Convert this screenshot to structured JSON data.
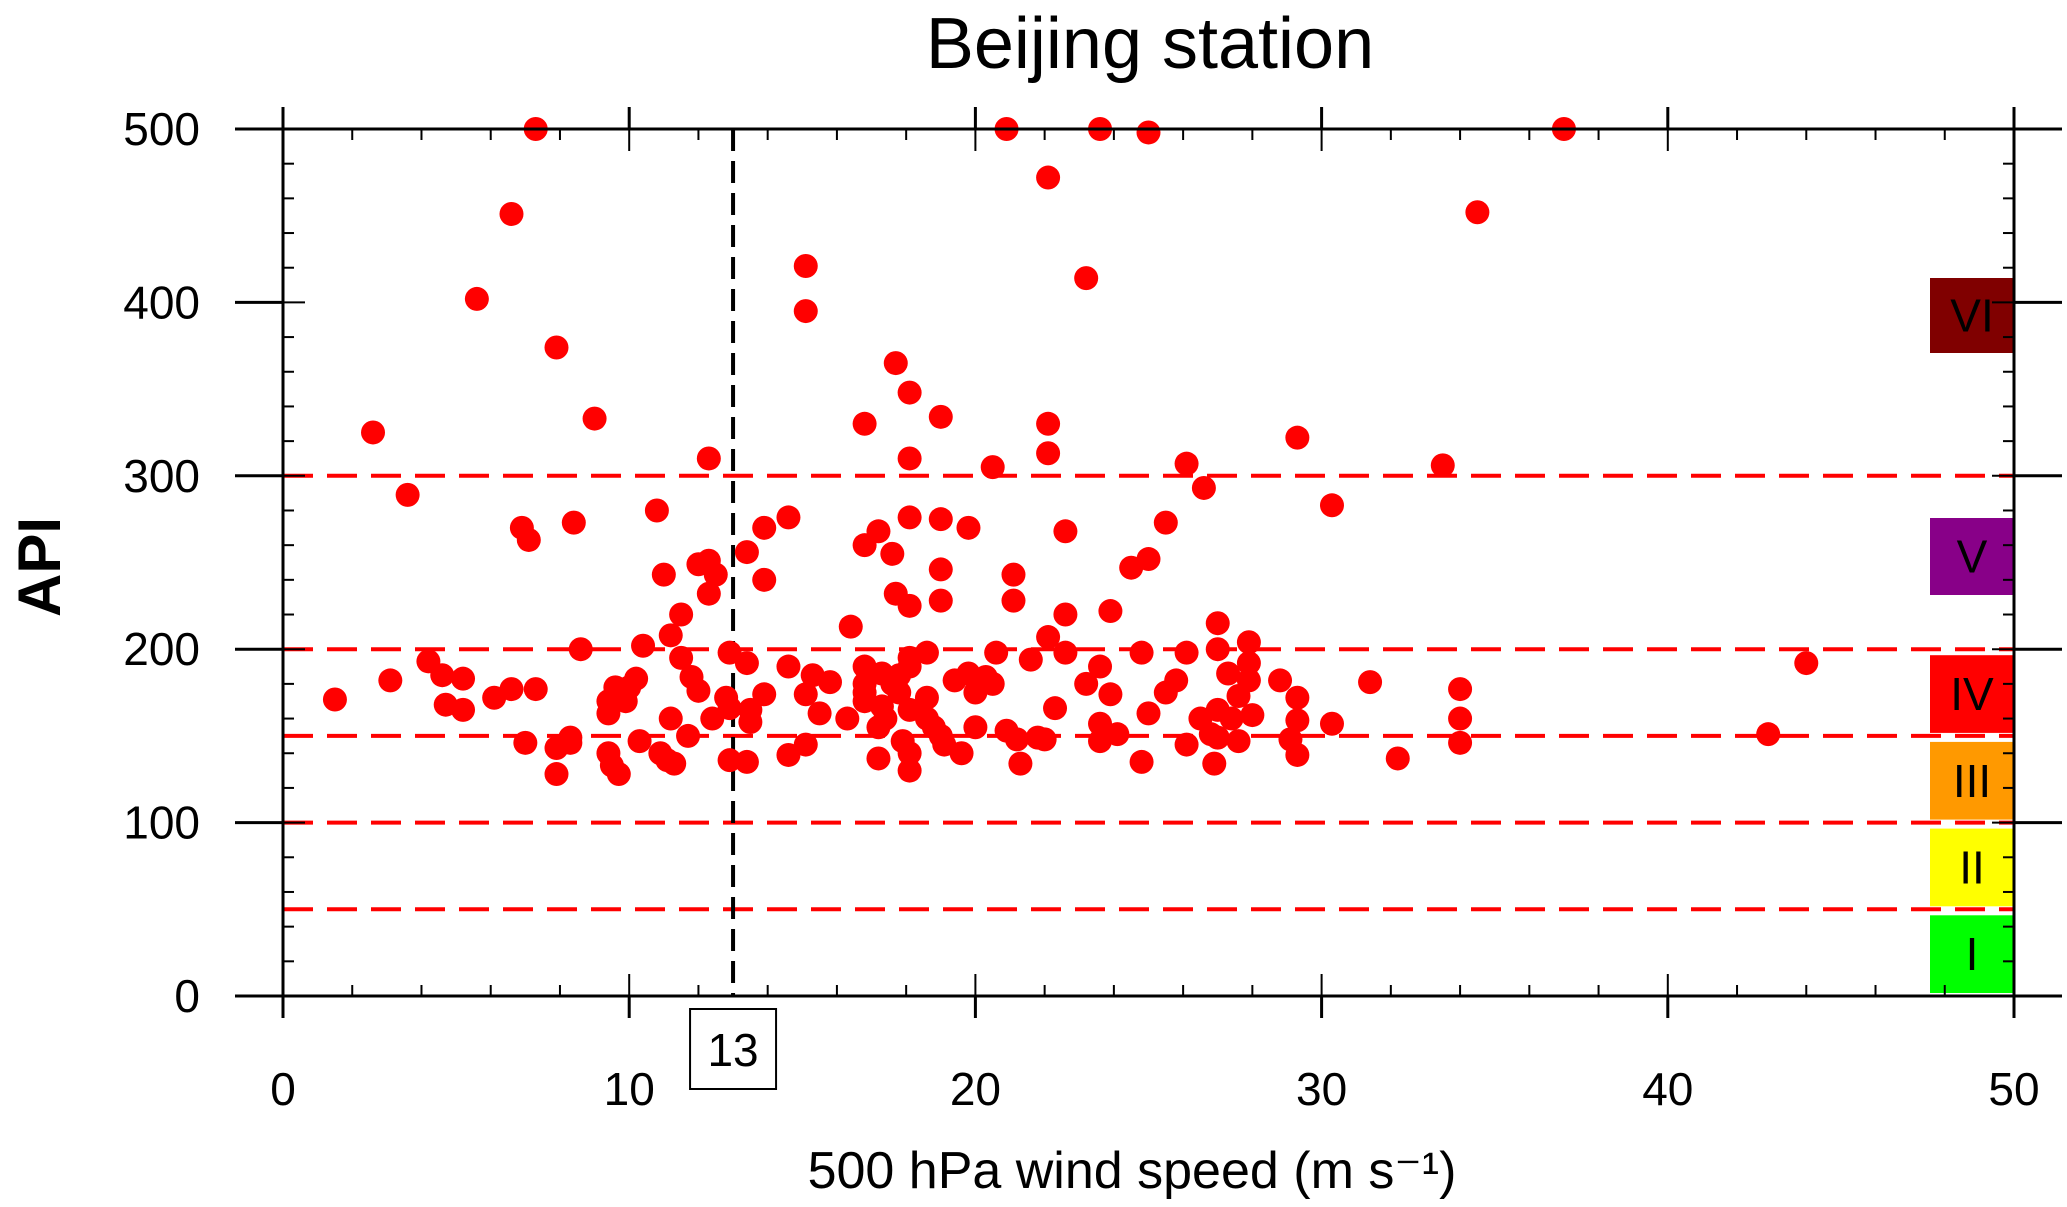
{
  "chart_data": {
    "type": "scatter",
    "title": "Beijing station",
    "xlabel": "500 hPa wind speed (m s⁻¹)",
    "ylabel": "API",
    "xlim": [
      0,
      50
    ],
    "ylim": [
      0,
      500
    ],
    "xticks": [
      "0",
      "10",
      "20",
      "30",
      "40",
      "50"
    ],
    "yticks": [
      "0",
      "100",
      "200",
      "300",
      "400",
      "500"
    ],
    "grid": false,
    "point_color": "#ff0000",
    "threshold_color": "#ff0000",
    "thresholds": [
      50,
      100,
      150,
      200,
      300
    ],
    "reference_line": {
      "x": 13,
      "label": "13",
      "color": "#000000"
    },
    "categories": [
      {
        "label": "I",
        "color": "#00ff00",
        "range": [
          0,
          50
        ]
      },
      {
        "label": "II",
        "color": "#ffff00",
        "range": [
          50,
          100
        ]
      },
      {
        "label": "III",
        "color": "#ff9900",
        "range": [
          100,
          150
        ]
      },
      {
        "label": "IV",
        "color": "#ff0000",
        "range": [
          150,
          200
        ]
      },
      {
        "label": "V",
        "color": "#880088",
        "range": [
          200,
          300
        ]
      },
      {
        "label": "VI",
        "color": "#800000",
        "range": [
          300,
          500
        ]
      }
    ],
    "points": [
      [
        1.5,
        171
      ],
      [
        2.6,
        325
      ],
      [
        3.1,
        182
      ],
      [
        3.6,
        289
      ],
      [
        4.2,
        193
      ],
      [
        4.6,
        185
      ],
      [
        4.7,
        168
      ],
      [
        5.2,
        183
      ],
      [
        5.2,
        165
      ],
      [
        5.6,
        402
      ],
      [
        6.1,
        172
      ],
      [
        6.6,
        177
      ],
      [
        6.6,
        451
      ],
      [
        6.9,
        270
      ],
      [
        7.0,
        146
      ],
      [
        7.1,
        263
      ],
      [
        7.3,
        177
      ],
      [
        7.3,
        500
      ],
      [
        7.9,
        374
      ],
      [
        7.9,
        128
      ],
      [
        7.9,
        143
      ],
      [
        8.3,
        146
      ],
      [
        8.3,
        149
      ],
      [
        8.4,
        273
      ],
      [
        8.6,
        200
      ],
      [
        9.0,
        333
      ],
      [
        9.4,
        140
      ],
      [
        9.4,
        163
      ],
      [
        9.4,
        170
      ],
      [
        9.5,
        133
      ],
      [
        9.6,
        178
      ],
      [
        9.6,
        173
      ],
      [
        9.7,
        128
      ],
      [
        9.9,
        170
      ],
      [
        10.0,
        178
      ],
      [
        10.2,
        183
      ],
      [
        10.3,
        147
      ],
      [
        10.4,
        202
      ],
      [
        10.8,
        280
      ],
      [
        10.9,
        140
      ],
      [
        11.0,
        243
      ],
      [
        11.1,
        136
      ],
      [
        11.2,
        208
      ],
      [
        11.2,
        160
      ],
      [
        11.3,
        134
      ],
      [
        11.5,
        220
      ],
      [
        11.5,
        195
      ],
      [
        11.7,
        150
      ],
      [
        11.8,
        184
      ],
      [
        12.0,
        249
      ],
      [
        12.0,
        176
      ],
      [
        12.3,
        251
      ],
      [
        12.3,
        232
      ],
      [
        12.3,
        310
      ],
      [
        12.4,
        160
      ],
      [
        12.5,
        243
      ],
      [
        12.8,
        172
      ],
      [
        12.9,
        136
      ],
      [
        12.9,
        198
      ],
      [
        12.9,
        166
      ],
      [
        13.4,
        192
      ],
      [
        13.4,
        256
      ],
      [
        13.4,
        135
      ],
      [
        13.5,
        158
      ],
      [
        13.5,
        165
      ],
      [
        13.9,
        270
      ],
      [
        13.9,
        240
      ],
      [
        13.9,
        174
      ],
      [
        14.6,
        276
      ],
      [
        14.6,
        139
      ],
      [
        14.6,
        190
      ],
      [
        15.1,
        421
      ],
      [
        15.1,
        395
      ],
      [
        15.1,
        174
      ],
      [
        15.1,
        145
      ],
      [
        15.3,
        185
      ],
      [
        15.5,
        163
      ],
      [
        15.8,
        181
      ],
      [
        16.3,
        160
      ],
      [
        16.4,
        213
      ],
      [
        16.8,
        330
      ],
      [
        16.8,
        260
      ],
      [
        16.8,
        190
      ],
      [
        16.8,
        180
      ],
      [
        16.8,
        175
      ],
      [
        16.8,
        170
      ],
      [
        17.2,
        268
      ],
      [
        17.2,
        155
      ],
      [
        17.2,
        137
      ],
      [
        17.3,
        186
      ],
      [
        17.3,
        167
      ],
      [
        17.4,
        160
      ],
      [
        17.6,
        180
      ],
      [
        17.6,
        255
      ],
      [
        17.7,
        232
      ],
      [
        17.7,
        365
      ],
      [
        17.8,
        175
      ],
      [
        17.8,
        185
      ],
      [
        17.9,
        147
      ],
      [
        18.1,
        348
      ],
      [
        18.1,
        310
      ],
      [
        18.1,
        276
      ],
      [
        18.1,
        195
      ],
      [
        18.1,
        225
      ],
      [
        18.1,
        140
      ],
      [
        18.1,
        130
      ],
      [
        18.1,
        165
      ],
      [
        18.1,
        190
      ],
      [
        18.6,
        198
      ],
      [
        18.6,
        160
      ],
      [
        18.6,
        172
      ],
      [
        18.8,
        155
      ],
      [
        19.0,
        334
      ],
      [
        19.0,
        275
      ],
      [
        19.0,
        246
      ],
      [
        19.0,
        228
      ],
      [
        19.0,
        150
      ],
      [
        19.1,
        145
      ],
      [
        19.4,
        182
      ],
      [
        19.6,
        140
      ],
      [
        19.8,
        270
      ],
      [
        19.8,
        186
      ],
      [
        20.0,
        175
      ],
      [
        20.0,
        155
      ],
      [
        20.3,
        184
      ],
      [
        20.5,
        305
      ],
      [
        20.5,
        180
      ],
      [
        20.6,
        198
      ],
      [
        20.9,
        500
      ],
      [
        20.9,
        153
      ],
      [
        21.1,
        243
      ],
      [
        21.1,
        228
      ],
      [
        21.2,
        148
      ],
      [
        21.3,
        134
      ],
      [
        21.6,
        194
      ],
      [
        21.8,
        149
      ],
      [
        22.0,
        148
      ],
      [
        22.1,
        207
      ],
      [
        22.1,
        313
      ],
      [
        22.1,
        330
      ],
      [
        22.1,
        472
      ],
      [
        22.3,
        166
      ],
      [
        22.6,
        198
      ],
      [
        22.6,
        220
      ],
      [
        22.6,
        268
      ],
      [
        23.2,
        414
      ],
      [
        23.2,
        180
      ],
      [
        23.6,
        500
      ],
      [
        23.6,
        147
      ],
      [
        23.6,
        157
      ],
      [
        23.6,
        190
      ],
      [
        23.9,
        222
      ],
      [
        23.9,
        174
      ],
      [
        24.1,
        151
      ],
      [
        24.5,
        247
      ],
      [
        24.8,
        198
      ],
      [
        24.8,
        135
      ],
      [
        25.0,
        498
      ],
      [
        25.0,
        252
      ],
      [
        25.0,
        163
      ],
      [
        25.5,
        273
      ],
      [
        25.5,
        175
      ],
      [
        25.8,
        182
      ],
      [
        26.1,
        307
      ],
      [
        26.1,
        198
      ],
      [
        26.1,
        145
      ],
      [
        26.5,
        160
      ],
      [
        26.6,
        293
      ],
      [
        26.8,
        151
      ],
      [
        26.9,
        134
      ],
      [
        27.0,
        215
      ],
      [
        27.0,
        200
      ],
      [
        27.0,
        165
      ],
      [
        27.0,
        149
      ],
      [
        27.3,
        186
      ],
      [
        27.4,
        160
      ],
      [
        27.6,
        173
      ],
      [
        27.6,
        147
      ],
      [
        27.9,
        204
      ],
      [
        27.9,
        192
      ],
      [
        27.9,
        182
      ],
      [
        28.0,
        162
      ],
      [
        28.8,
        182
      ],
      [
        29.1,
        148
      ],
      [
        29.3,
        322
      ],
      [
        29.3,
        172
      ],
      [
        29.3,
        159
      ],
      [
        29.3,
        139
      ],
      [
        30.3,
        283
      ],
      [
        30.3,
        157
      ],
      [
        31.4,
        181
      ],
      [
        32.2,
        137
      ],
      [
        33.5,
        306
      ],
      [
        34.0,
        177
      ],
      [
        34.0,
        160
      ],
      [
        34.0,
        146
      ],
      [
        34.5,
        452
      ],
      [
        37.0,
        500
      ],
      [
        42.9,
        151
      ],
      [
        44.0,
        192
      ]
    ]
  }
}
